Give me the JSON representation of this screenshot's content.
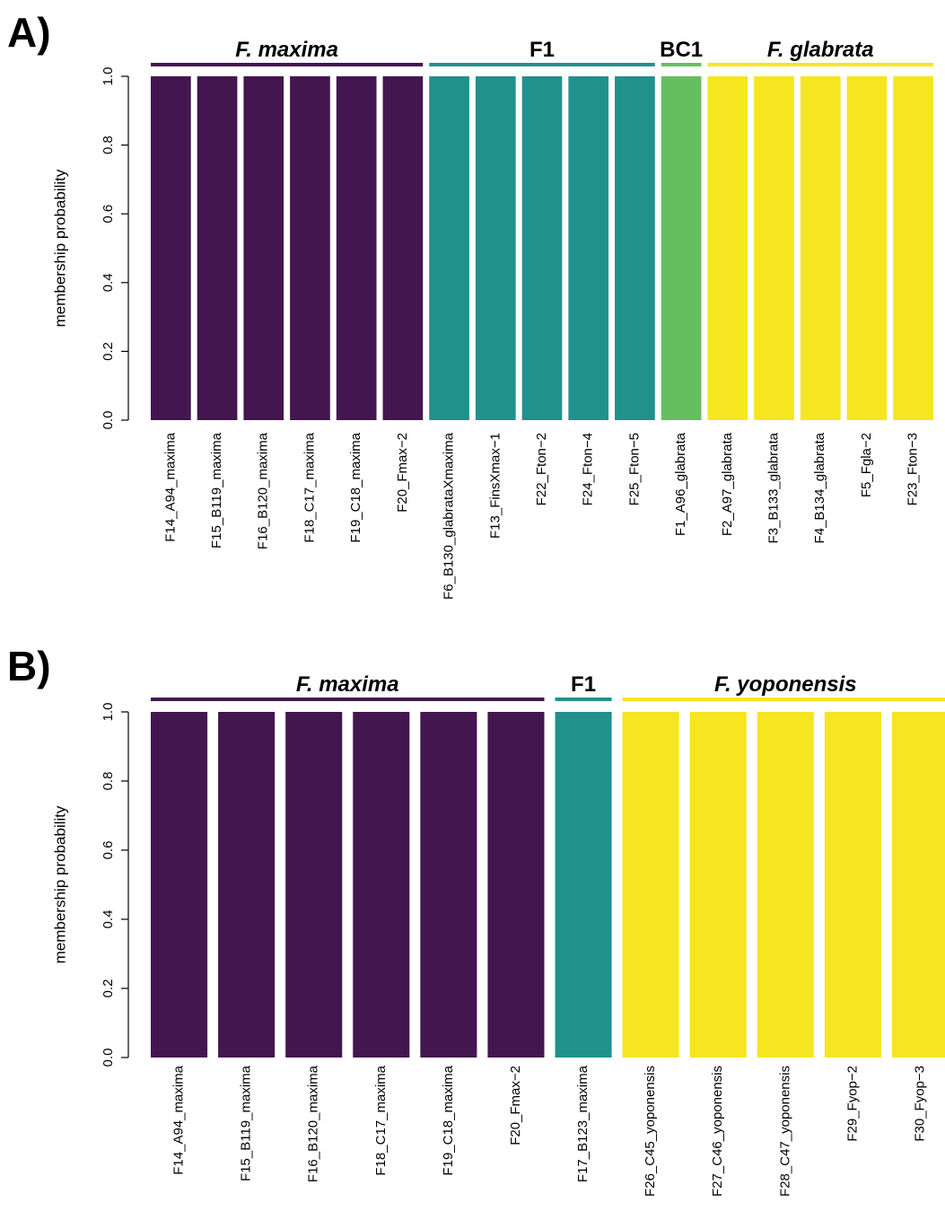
{
  "chart_data": [
    {
      "panel": "A)",
      "type": "bar",
      "stacked": true,
      "ylabel": "membership probability",
      "ylim": [
        0,
        1
      ],
      "yticks": [
        "0.0",
        "0.2",
        "0.4",
        "0.6",
        "0.8",
        "1.0"
      ],
      "categories": [
        "F14_A94_maxima",
        "F15_B119_maxima",
        "F16_B120_maxima",
        "F18_C17_maxima",
        "F19_C18_maxima",
        "F20_Fmax−2",
        "F6_B130_glabrataXmaxima",
        "F13_FinsXmax−1",
        "F22_Fton−2",
        "F24_Fton−4",
        "F25_Fton−5",
        "F1_A96_glabrata",
        "F2_A97_glabrata",
        "F3_B133_glabrata",
        "F4_B134_glabrata",
        "F5_Fgla−2",
        "F23_Fton−3"
      ],
      "bar_colors": [
        "#43164f",
        "#43164f",
        "#43164f",
        "#43164f",
        "#43164f",
        "#43164f",
        "#21918c",
        "#21918c",
        "#21918c",
        "#21918c",
        "#21918c",
        "#65bf5f",
        "#f6e620",
        "#f6e620",
        "#f6e620",
        "#f6e620",
        "#f6e620"
      ],
      "values": [
        1,
        1,
        1,
        1,
        1,
        1,
        1,
        1,
        1,
        1,
        1,
        1,
        1,
        1,
        1,
        1,
        1
      ],
      "groups": [
        {
          "label": "F. maxima",
          "italic": true,
          "start": 0,
          "end": 5,
          "color": "#43164f"
        },
        {
          "label": "F1",
          "italic": false,
          "start": 6,
          "end": 10,
          "color": "#21918c"
        },
        {
          "label": "BC1",
          "italic": false,
          "start": 11,
          "end": 11,
          "color": "#65bf5f"
        },
        {
          "label": "F. glabrata",
          "italic": true,
          "start": 12,
          "end": 16,
          "color": "#f6e620"
        }
      ]
    },
    {
      "panel": "B)",
      "type": "bar",
      "stacked": true,
      "ylabel": "membership probability",
      "ylim": [
        0,
        1
      ],
      "yticks": [
        "0.0",
        "0.2",
        "0.4",
        "0.6",
        "0.8",
        "1.0"
      ],
      "categories": [
        "F14_A94_maxima",
        "F15_B119_maxima",
        "F16_B120_maxima",
        "F18_C17_maxima",
        "F19_C18_maxima",
        "F20_Fmax−2",
        "F17_B123_maxima",
        "F26_C45_yoponensis",
        "F27_C46_yoponensis",
        "F28_C47_yoponensis",
        "F29_Fyop−2",
        "F30_Fyop−3"
      ],
      "bar_colors": [
        "#43164f",
        "#43164f",
        "#43164f",
        "#43164f",
        "#43164f",
        "#43164f",
        "#21918c",
        "#f6e620",
        "#f6e620",
        "#f6e620",
        "#f6e620",
        "#f6e620"
      ],
      "values": [
        1,
        1,
        1,
        1,
        1,
        1,
        1,
        1,
        1,
        1,
        1,
        1
      ],
      "groups": [
        {
          "label": "F. maxima",
          "italic": true,
          "start": 0,
          "end": 5,
          "color": "#43164f"
        },
        {
          "label": "F1",
          "italic": false,
          "start": 6,
          "end": 6,
          "color": "#21918c"
        },
        {
          "label": "F. yoponensis",
          "italic": true,
          "start": 7,
          "end": 11,
          "color": "#f6e620"
        }
      ]
    }
  ]
}
